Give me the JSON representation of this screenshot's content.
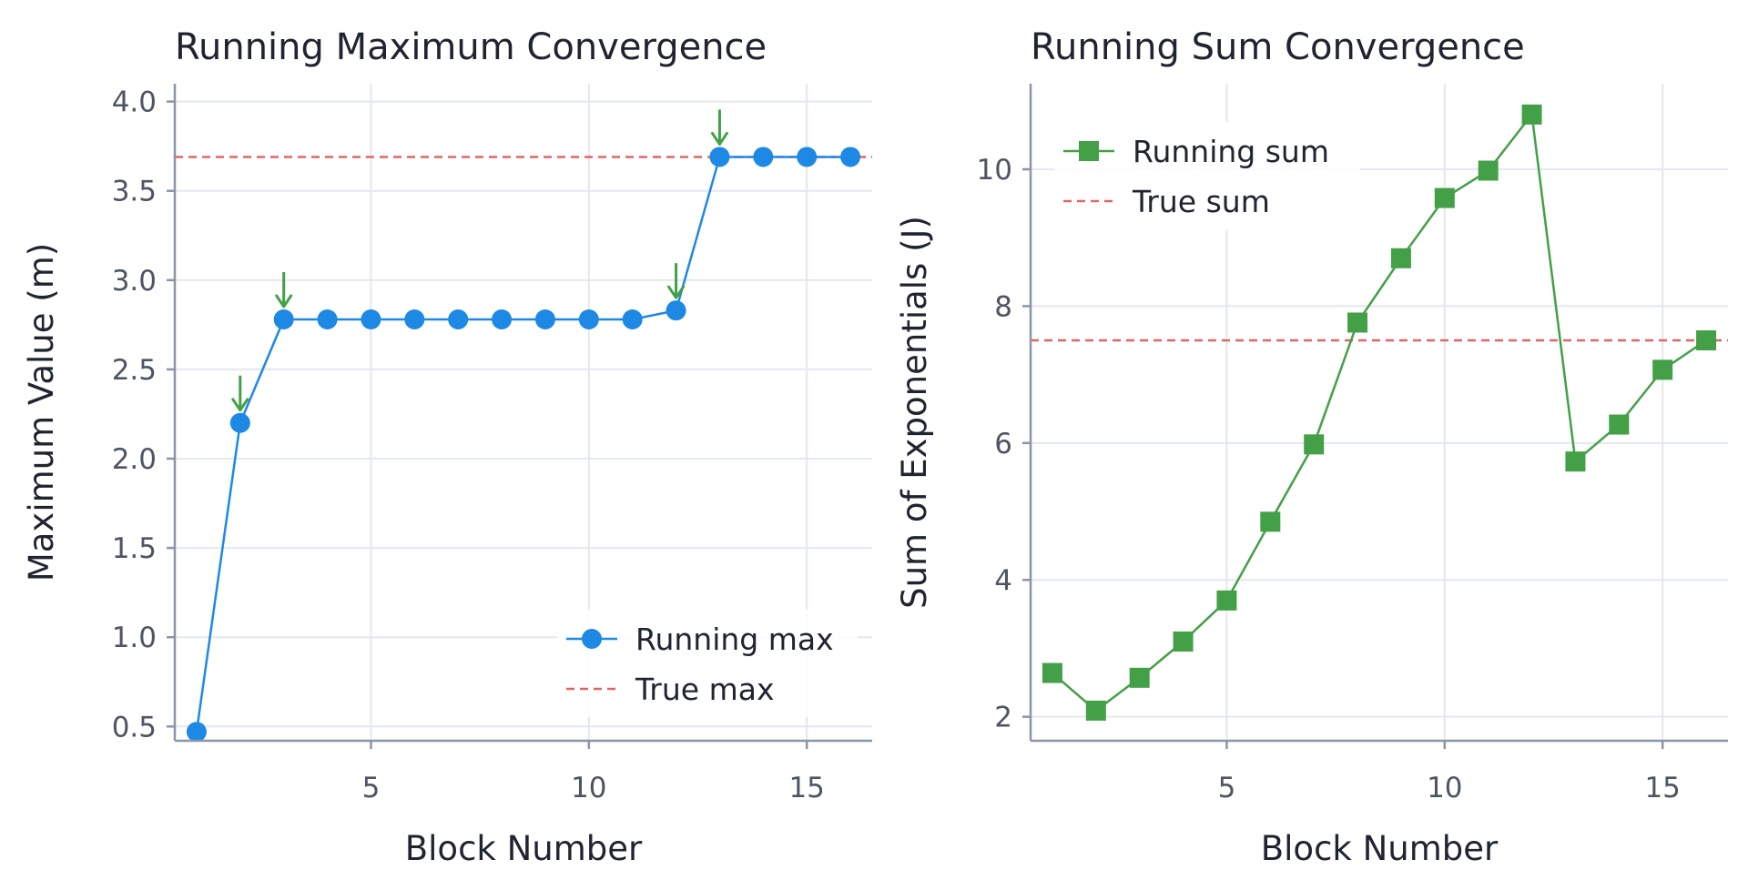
{
  "colors": {
    "blue": "#1e88e5",
    "green": "#43a047",
    "red": "#e06666",
    "grid": "#e4e8ee",
    "spine": "#8a96a8"
  },
  "chart_data": [
    {
      "type": "line",
      "title": "Running Maximum Convergence",
      "xlabel": "Block Number",
      "ylabel": "Maximum Value (m)",
      "xlim": [
        0.5,
        16.5
      ],
      "ylim": [
        0.42,
        4.1
      ],
      "xticks": [
        5,
        10,
        15
      ],
      "yticks": [
        0.5,
        1.0,
        1.5,
        2.0,
        2.5,
        3.0,
        3.5,
        4.0
      ],
      "ytick_labels": [
        "0.5",
        "1.0",
        "1.5",
        "2.0",
        "2.5",
        "3.0",
        "3.5",
        "4.0"
      ],
      "grid": true,
      "legend_position": "lower-right",
      "series": [
        {
          "name": "Running max",
          "marker": "circle",
          "color": "#1e88e5",
          "x": [
            1,
            2,
            3,
            4,
            5,
            6,
            7,
            8,
            9,
            10,
            11,
            12,
            13,
            14,
            15,
            16
          ],
          "y": [
            0.47,
            2.2,
            2.78,
            2.78,
            2.78,
            2.78,
            2.78,
            2.78,
            2.78,
            2.78,
            2.78,
            2.83,
            3.69,
            3.69,
            3.69,
            3.69
          ]
        }
      ],
      "reference_line": {
        "name": "True max",
        "y": 3.69,
        "color": "#e06666"
      },
      "annotations": {
        "type": "down-arrow",
        "color": "#43a047",
        "x": [
          2,
          3,
          12,
          13
        ]
      }
    },
    {
      "type": "line",
      "title": "Running Sum Convergence",
      "xlabel": "Block Number",
      "ylabel": "Sum of Exponentials (J)",
      "xlim": [
        0.5,
        16.5
      ],
      "ylim": [
        1.65,
        11.25
      ],
      "xticks": [
        5,
        10,
        15
      ],
      "yticks": [
        2,
        4,
        6,
        8,
        10
      ],
      "ytick_labels": [
        "2",
        "4",
        "6",
        "8",
        "10"
      ],
      "grid": true,
      "legend_position": "upper-left",
      "series": [
        {
          "name": "Running sum",
          "marker": "square",
          "color": "#43a047",
          "x": [
            1,
            2,
            3,
            4,
            5,
            6,
            7,
            8,
            9,
            10,
            11,
            12,
            13,
            14,
            15,
            16
          ],
          "y": [
            2.64,
            2.09,
            2.57,
            3.1,
            3.7,
            4.85,
            5.98,
            7.76,
            8.7,
            9.58,
            9.98,
            10.8,
            5.73,
            6.27,
            7.07,
            7.5
          ]
        }
      ],
      "reference_line": {
        "name": "True sum",
        "y": 7.5,
        "color": "#e06666"
      }
    }
  ]
}
